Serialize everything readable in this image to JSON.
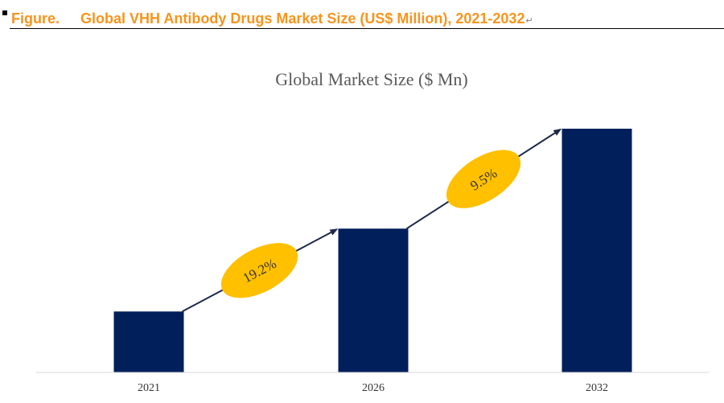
{
  "header": {
    "figure_label": "Figure.",
    "figure_title": "Global VHH Antibody Drugs Market Size (US$ Million), 2021-2032",
    "paragraph_mark": "↵"
  },
  "colors": {
    "bar": "#001f5b",
    "growth_ellipse": "#ffc000",
    "arrow": "#1f2a4a",
    "header_text": "#f7941d",
    "axis": "#d9d9d9"
  },
  "chart_data": {
    "type": "bar",
    "title": "Global Market Size ($ Mn)",
    "categories": [
      "2021",
      "2026",
      "2032"
    ],
    "values": [
      25,
      59,
      100
    ],
    "ylim": [
      0,
      100
    ],
    "grid": false,
    "legend": "none",
    "annotations": [
      {
        "text": "19.2%",
        "from": "2021",
        "to": "2026"
      },
      {
        "text": "9.5%",
        "from": "2026",
        "to": "2032"
      }
    ]
  }
}
